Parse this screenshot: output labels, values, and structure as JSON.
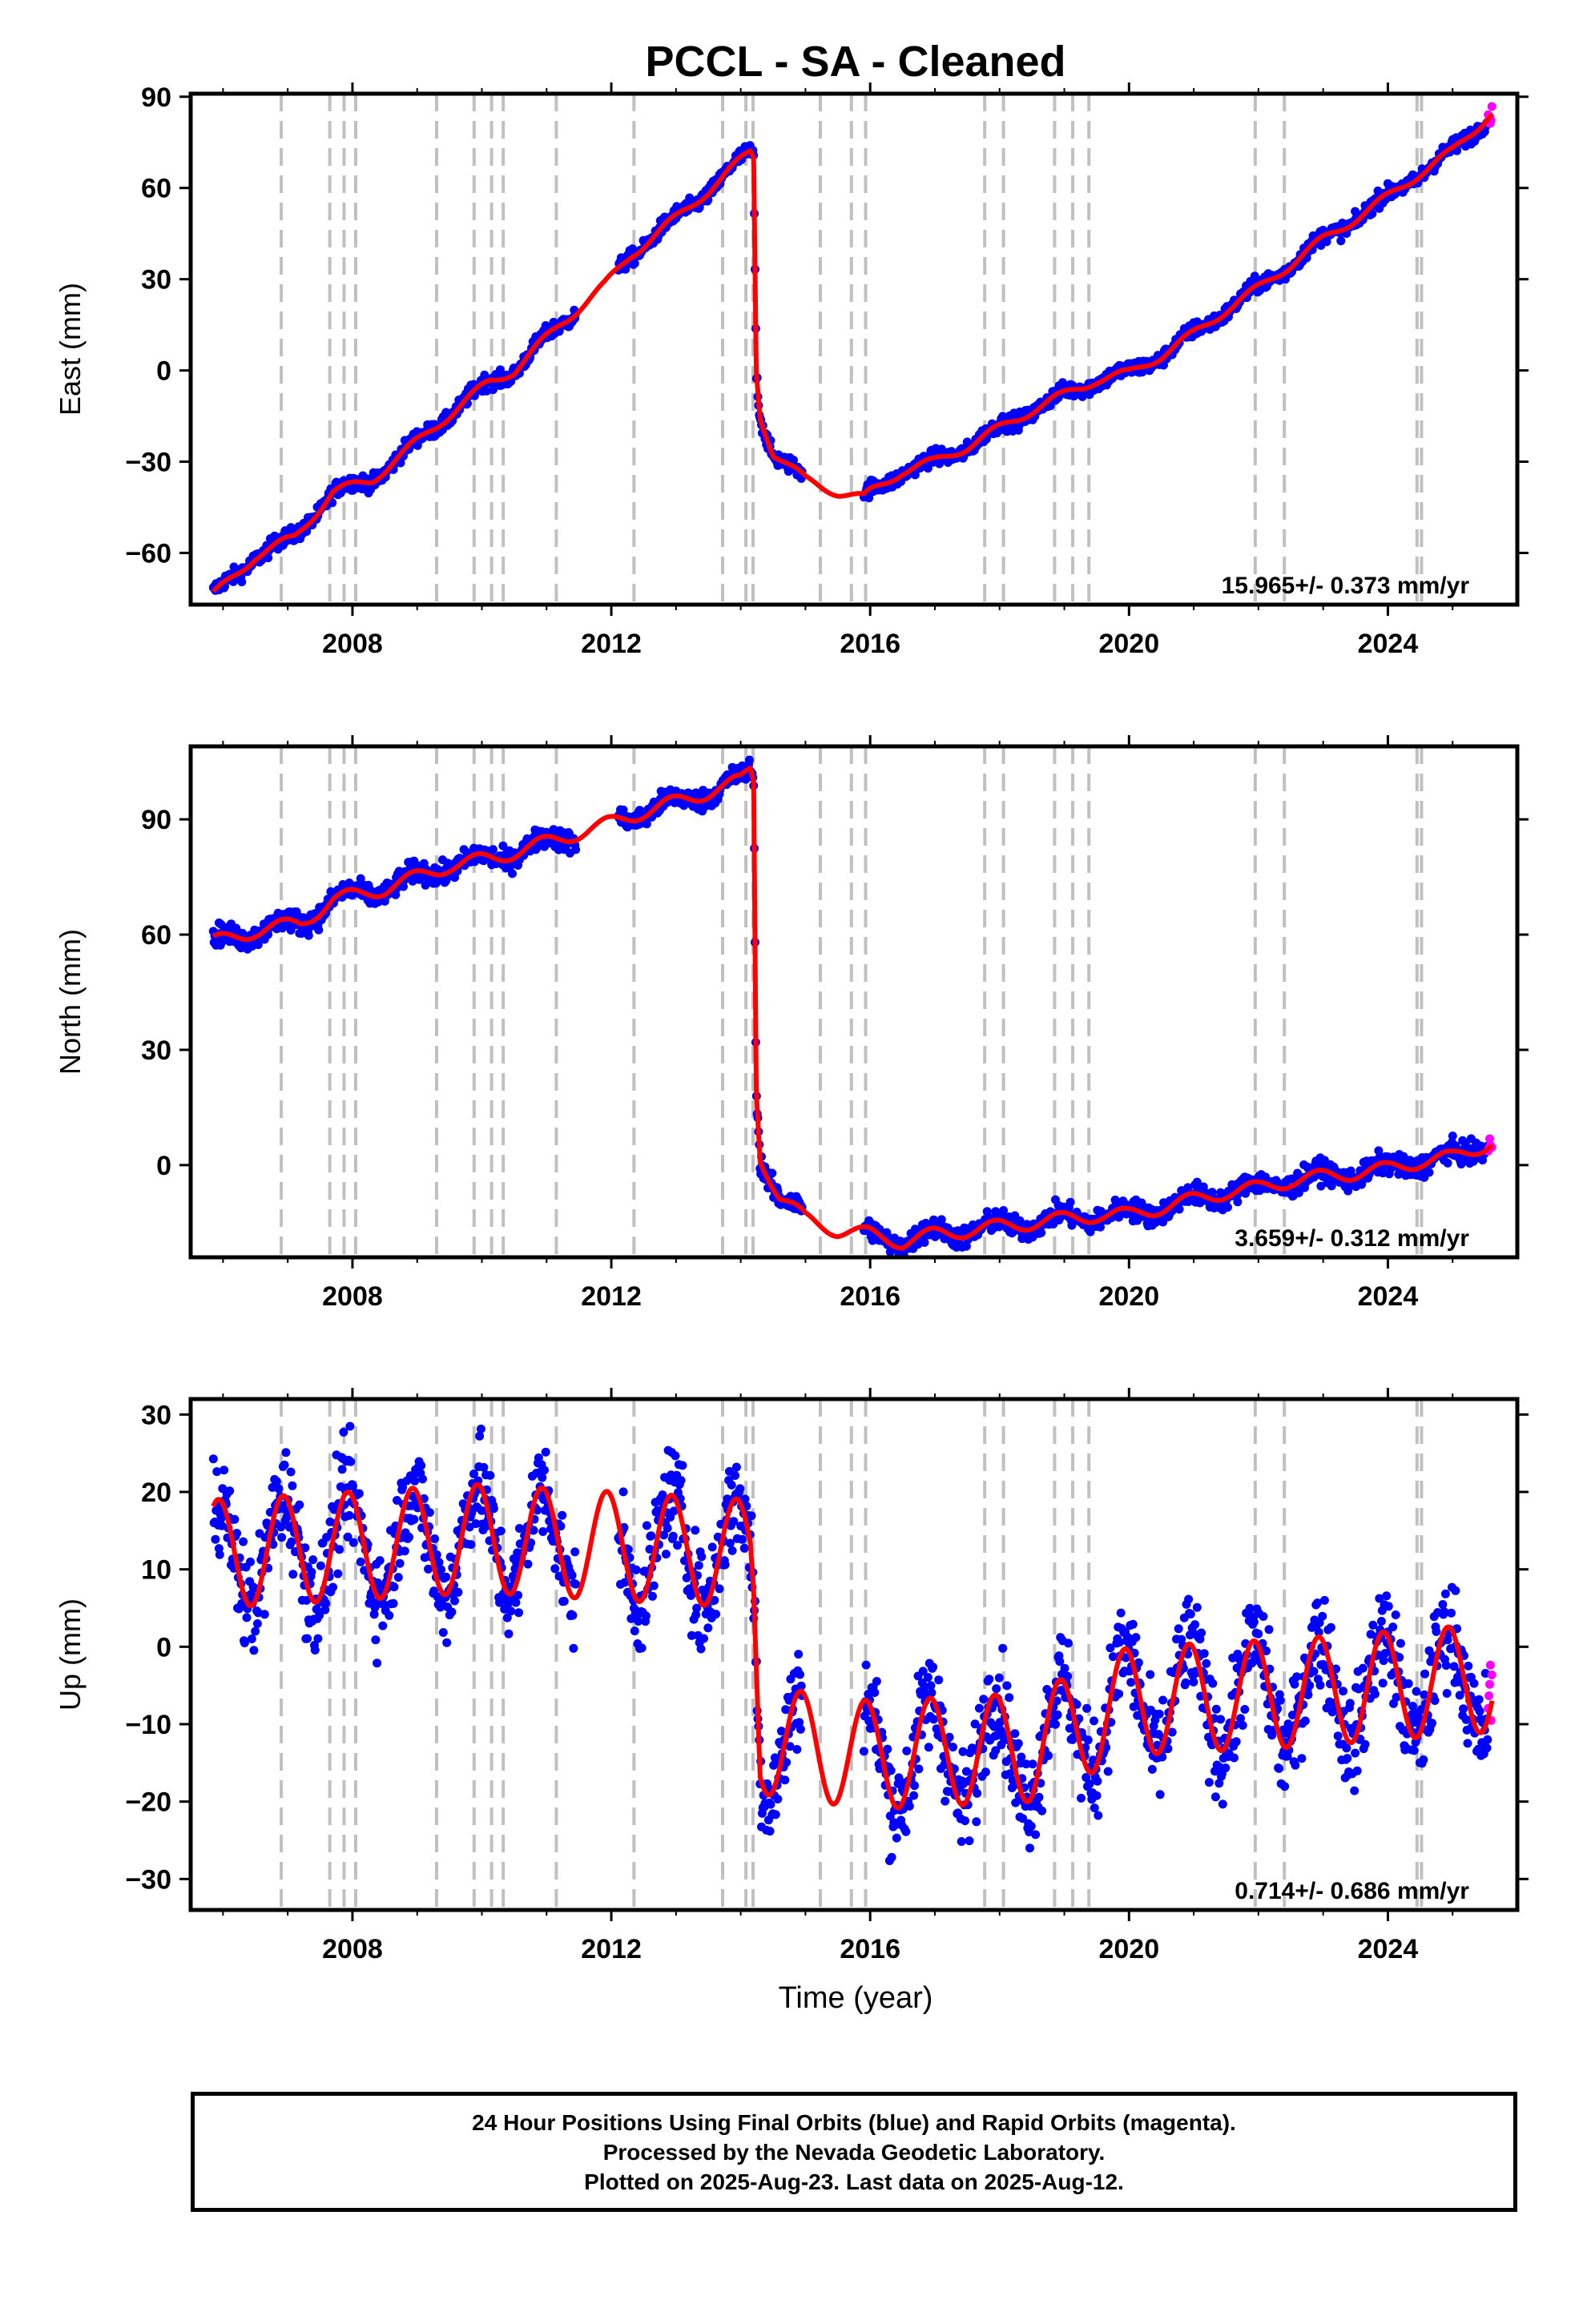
{
  "chart_data": {
    "title": "PCCL  - SA - Cleaned",
    "type": "scatter",
    "x_label": "Time (year)",
    "xlim": [
      2005.5,
      2026.0
    ],
    "x_ticks": [
      2008,
      2012,
      2016,
      2020,
      2024
    ],
    "x_ticks_labels": [
      "2008",
      "2012",
      "2016",
      "2020",
      "2024"
    ],
    "data_start": 2005.85,
    "data_end": 2025.61,
    "break_epochs": [
      2006.9,
      2007.65,
      2007.87,
      2008.05,
      2009.3,
      2009.88,
      2010.15,
      2010.33,
      2011.15,
      2012.35,
      2013.72,
      2014.08,
      2014.19,
      2015.23,
      2015.71,
      2015.93,
      2017.77,
      2018.06,
      2018.85,
      2019.13,
      2019.38,
      2021.95,
      2022.4,
      2024.45,
      2024.52
    ],
    "colors": {
      "final_orbits": "#0000ff",
      "rapid_orbits": "#ff00ff",
      "model": "#ff0000",
      "breaks": "#c0c0c0"
    },
    "panels": [
      {
        "component": "east",
        "ylabel": "East (mm)",
        "ylim": [
          -77,
          91
        ],
        "yticks": [
          -60,
          -30,
          0,
          30,
          60,
          90
        ],
        "yticks_labels": [
          "−60",
          "−30",
          "0",
          "30",
          "60",
          "90"
        ],
        "rate_text": "15.965+/- 0.373 mm/yr",
        "noise": 1.3,
        "anchors": [
          [
            2005.85,
            -74
          ],
          [
            2006.5,
            -61
          ],
          [
            2007.1,
            -55
          ],
          [
            2007.7,
            -40
          ],
          [
            2008.3,
            -36
          ],
          [
            2009.3,
            -18
          ],
          [
            2010.1,
            -4
          ],
          [
            2010.5,
            0
          ],
          [
            2011.2,
            15
          ],
          [
            2011.9,
            28
          ],
          [
            2012.3,
            38
          ],
          [
            2013.0,
            50
          ],
          [
            2013.7,
            63
          ],
          [
            2014.15,
            72
          ],
          [
            2014.2,
            70
          ],
          [
            2014.24,
            0
          ],
          [
            2014.3,
            -15
          ],
          [
            2014.5,
            -27
          ],
          [
            2015.0,
            -36
          ],
          [
            2015.5,
            -40
          ],
          [
            2015.9,
            -42
          ],
          [
            2016.0,
            -40
          ],
          [
            2016.5,
            -33
          ],
          [
            2017.0,
            -30
          ],
          [
            2017.5,
            -25
          ],
          [
            2018.0,
            -19
          ],
          [
            2018.5,
            -13
          ],
          [
            2019.0,
            -8
          ],
          [
            2019.5,
            -3
          ],
          [
            2020.0,
            -1
          ],
          [
            2020.5,
            5
          ],
          [
            2021.0,
            12
          ],
          [
            2021.5,
            20
          ],
          [
            2022.0,
            27
          ],
          [
            2022.5,
            35
          ],
          [
            2023.0,
            43
          ],
          [
            2023.5,
            50
          ],
          [
            2024.0,
            57
          ],
          [
            2024.5,
            65
          ],
          [
            2025.0,
            72
          ],
          [
            2025.61,
            85
          ]
        ],
        "seasonal": 1.5
      },
      {
        "component": "north",
        "ylabel": "North (mm)",
        "ylim": [
          -24,
          109
        ],
        "yticks": [
          0,
          30,
          60,
          90
        ],
        "yticks_labels": [
          "0",
          "30",
          "60",
          "90"
        ],
        "rate_text": "3.659+/- 0.312 mm/yr",
        "noise": 1.4,
        "anchors": [
          [
            2005.85,
            58
          ],
          [
            2006.5,
            61
          ],
          [
            2007.2,
            63
          ],
          [
            2007.7,
            69
          ],
          [
            2008.5,
            72
          ],
          [
            2009.5,
            78
          ],
          [
            2010.2,
            80
          ],
          [
            2011.0,
            84
          ],
          [
            2011.8,
            88
          ],
          [
            2012.5,
            92
          ],
          [
            2013.3,
            96
          ],
          [
            2014.0,
            100
          ],
          [
            2014.15,
            103
          ],
          [
            2014.2,
            100
          ],
          [
            2014.24,
            20
          ],
          [
            2014.3,
            2
          ],
          [
            2014.6,
            -8
          ],
          [
            2015.0,
            -14
          ],
          [
            2015.5,
            -17
          ],
          [
            2016.0,
            -18
          ],
          [
            2016.5,
            -20
          ],
          [
            2017.0,
            -18
          ],
          [
            2017.5,
            -17
          ],
          [
            2018.0,
            -16
          ],
          [
            2018.5,
            -15
          ],
          [
            2019.0,
            -14
          ],
          [
            2019.5,
            -13
          ],
          [
            2020.0,
            -13
          ],
          [
            2020.5,
            -11
          ],
          [
            2021.0,
            -9
          ],
          [
            2021.5,
            -7
          ],
          [
            2022.0,
            -6
          ],
          [
            2022.5,
            -4
          ],
          [
            2023.0,
            -3
          ],
          [
            2023.5,
            -2
          ],
          [
            2024.0,
            -1
          ],
          [
            2024.5,
            1
          ],
          [
            2025.0,
            2
          ],
          [
            2025.61,
            6
          ]
        ],
        "seasonal": 1.8
      },
      {
        "component": "up",
        "ylabel": "Up (mm)",
        "ylim": [
          -34,
          32
        ],
        "yticks": [
          -30,
          -20,
          -10,
          0,
          10,
          20,
          30
        ],
        "yticks_labels": [
          "−30",
          "−20",
          "−10",
          "0",
          "10",
          "20",
          "30"
        ],
        "rate_text": "0.714+/- 0.686 mm/yr",
        "noise": 3.3,
        "anchors": [
          [
            2005.85,
            12
          ],
          [
            2010.0,
            14
          ],
          [
            2014.15,
            12
          ],
          [
            2014.2,
            8
          ],
          [
            2014.3,
            -12
          ],
          [
            2016.0,
            -14
          ],
          [
            2018.5,
            -13
          ],
          [
            2020.0,
            -7
          ],
          [
            2022.5,
            -6
          ],
          [
            2025.61,
            -4
          ]
        ],
        "seasonal": 7.0
      }
    ]
  },
  "footer": {
    "line1": "24 Hour Positions Using Final Orbits (blue) and Rapid Orbits (magenta).",
    "line2": "Processed by the Nevada Geodetic Laboratory.",
    "line3": "Plotted on 2025-Aug-23. Last data on 2025-Aug-12."
  }
}
